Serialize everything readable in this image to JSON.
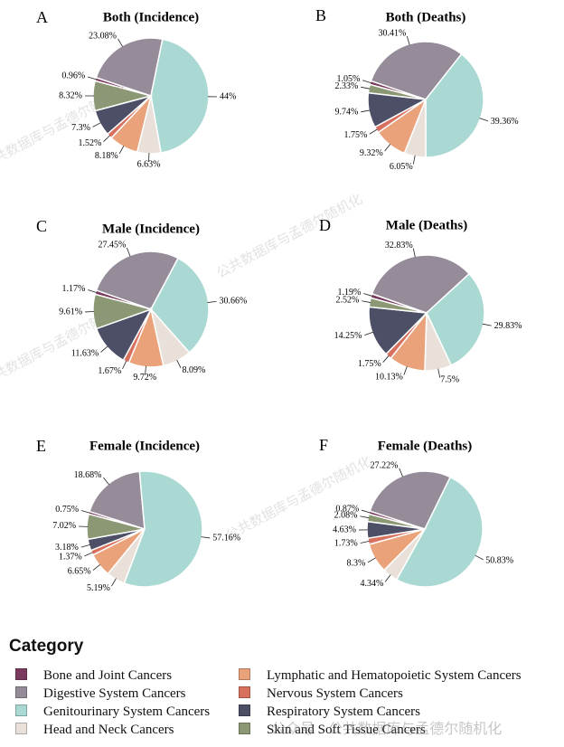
{
  "categories": [
    {
      "name": "Bone and Joint Cancers",
      "color": "#7b3b5e"
    },
    {
      "name": "Digestive System Cancers",
      "color": "#958b99"
    },
    {
      "name": "Genitourinary System Cancers",
      "color": "#a9d9d2"
    },
    {
      "name": "Head and Neck Cancers",
      "color": "#e9e1d9"
    },
    {
      "name": "Lymphatic and Hematopoietic System Cancers",
      "color": "#eaa27b"
    },
    {
      "name": "Nervous System Cancers",
      "color": "#d8705e"
    },
    {
      "name": "Respiratory System Cancers",
      "color": "#4c4f66"
    },
    {
      "name": "Skin and Soft Tissue Cancers",
      "color": "#8c9873"
    }
  ],
  "legend_title": "Category",
  "chart_data": [
    {
      "type": "pie",
      "panel": "A",
      "title": "Both (Incidence)",
      "labels": [
        "Bone and Joint Cancers",
        "Digestive System Cancers",
        "Genitourinary System Cancers",
        "Head and Neck Cancers",
        "Lymphatic and Hematopoietic System Cancers",
        "Nervous System Cancers",
        "Respiratory System Cancers",
        "Skin and Soft Tissue Cancers"
      ],
      "values": [
        0.96,
        23.08,
        44,
        6.63,
        8.18,
        1.52,
        7.3,
        8.32
      ],
      "value_labels": [
        "0.96%",
        "23.08%",
        "44%",
        "6.63%",
        "8.18%",
        "1.52%",
        "7.3%",
        "8.32%"
      ]
    },
    {
      "type": "pie",
      "panel": "B",
      "title": "Both (Deaths)",
      "labels": [
        "Bone and Joint Cancers",
        "Digestive System Cancers",
        "Genitourinary System Cancers",
        "Head and Neck Cancers",
        "Lymphatic and Hematopoietic System Cancers",
        "Nervous System Cancers",
        "Respiratory System Cancers",
        "Skin and Soft Tissue Cancers"
      ],
      "values": [
        1.05,
        30.41,
        39.36,
        6.05,
        9.32,
        1.75,
        9.74,
        2.33
      ],
      "value_labels": [
        "1.05%",
        "30.41%",
        "39.36%",
        "6.05%",
        "9.32%",
        "1.75%",
        "9.74%",
        "2.33%"
      ]
    },
    {
      "type": "pie",
      "panel": "C",
      "title": "Male (Incidence)",
      "labels": [
        "Bone and Joint Cancers",
        "Digestive System Cancers",
        "Genitourinary System Cancers",
        "Head and Neck Cancers",
        "Lymphatic and Hematopoietic System Cancers",
        "Nervous System Cancers",
        "Respiratory System Cancers",
        "Skin and Soft Tissue Cancers"
      ],
      "values": [
        1.17,
        27.45,
        30.66,
        8.09,
        9.72,
        1.67,
        11.63,
        9.61
      ],
      "value_labels": [
        "1.17%",
        "27.45%",
        "30.66%",
        "8.09%",
        "9.72%",
        "1.67%",
        "11.63%",
        "9.61%"
      ]
    },
    {
      "type": "pie",
      "panel": "D",
      "title": "Male (Deaths)",
      "labels": [
        "Bone and Joint Cancers",
        "Digestive System Cancers",
        "Genitourinary System Cancers",
        "Head and Neck Cancers",
        "Lymphatic and Hematopoietic System Cancers",
        "Nervous System Cancers",
        "Respiratory System Cancers",
        "Skin and Soft Tissue Cancers"
      ],
      "values": [
        1.19,
        32.83,
        29.83,
        7.5,
        10.13,
        1.75,
        14.25,
        2.52
      ],
      "value_labels": [
        "1.19%",
        "32.83%",
        "29.83%",
        "7.5%",
        "10.13%",
        "1.75%",
        "14.25%",
        "2.52%"
      ]
    },
    {
      "type": "pie",
      "panel": "E",
      "title": "Female (Incidence)",
      "labels": [
        "Bone and Joint Cancers",
        "Digestive System Cancers",
        "Genitourinary System Cancers",
        "Head and Neck Cancers",
        "Lymphatic and Hematopoietic System Cancers",
        "Nervous System Cancers",
        "Respiratory System Cancers",
        "Skin and Soft Tissue Cancers"
      ],
      "values": [
        0.75,
        18.68,
        57.16,
        5.19,
        6.65,
        1.37,
        3.18,
        7.02
      ],
      "value_labels": [
        "0.75%",
        "18.68%",
        "57.16%",
        "5.19%",
        "6.65%",
        "1.37%",
        "3.18%",
        "7.02%"
      ]
    },
    {
      "type": "pie",
      "panel": "F",
      "title": "Female (Deaths)",
      "labels": [
        "Bone and Joint Cancers",
        "Digestive System Cancers",
        "Genitourinary System Cancers",
        "Head and Neck Cancers",
        "Lymphatic and Hematopoietic System Cancers",
        "Nervous System Cancers",
        "Respiratory System Cancers",
        "Skin and Soft Tissue Cancers"
      ],
      "values": [
        0.87,
        27.22,
        50.83,
        4.34,
        8.3,
        1.73,
        4.63,
        2.08
      ],
      "value_labels": [
        "0.87%",
        "27.22%",
        "50.83%",
        "4.34%",
        "8.3%",
        "1.73%",
        "4.63%",
        "2.08%"
      ]
    }
  ],
  "watermark": {
    "text": "公共数据库与孟德尔随机化",
    "caption": "公众号 · 公共数据库与孟德尔随机化"
  }
}
